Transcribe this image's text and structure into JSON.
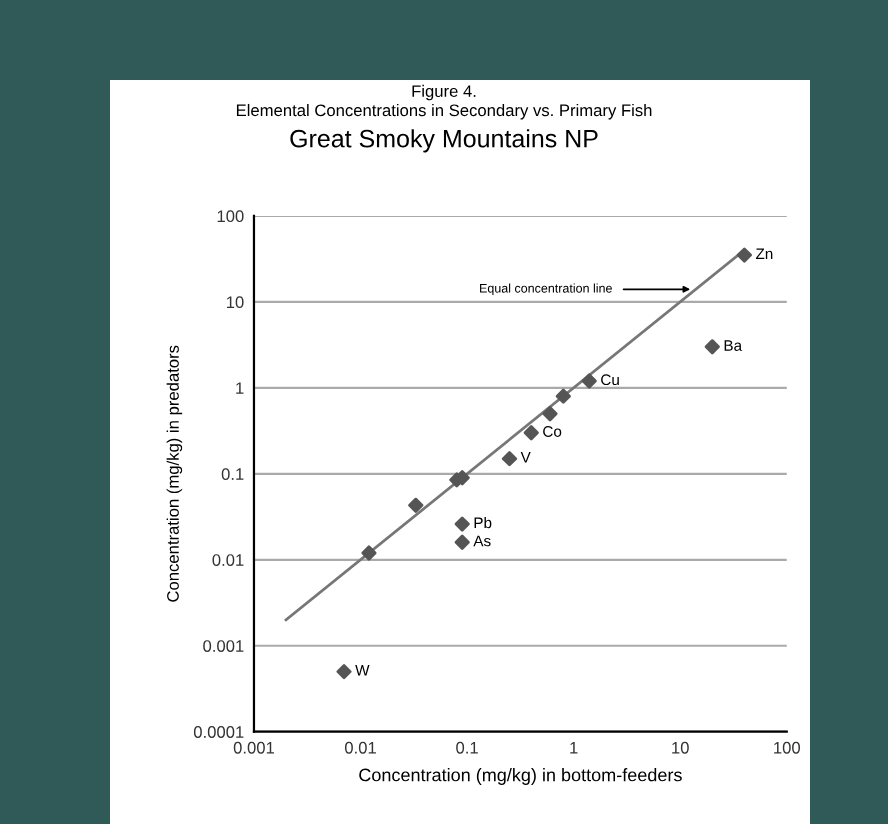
{
  "chart_data": {
    "type": "scatter",
    "title": "Figure 4.\nElemental Concentrations in Secondary vs. Primary Fish",
    "subtitle": "Great Smoky Mountains NP",
    "xlabel": "Concentration (mg/kg) in bottom-feeders",
    "ylabel": "Concentration (mg/kg) in predators",
    "log": "xy",
    "grid": "y",
    "xlim": [
      0.001,
      100
    ],
    "ylim": [
      0.0001,
      100
    ],
    "xticks": [
      0.001,
      0.01,
      0.1,
      1,
      10,
      100
    ],
    "yticks": [
      0.0001,
      0.001,
      0.01,
      0.1,
      1,
      10,
      100
    ],
    "series": [
      {
        "marker": "diamond",
        "color": "#555555",
        "x": [
          40,
          20,
          1.4,
          0.8,
          0.6,
          0.4,
          0.25,
          0.09,
          0.08,
          0.033,
          0.09,
          0.09,
          0.012,
          0.007
        ],
        "values": [
          35,
          3,
          1.2,
          0.8,
          0.5,
          0.3,
          0.15,
          0.09,
          0.085,
          0.043,
          0.026,
          0.016,
          0.012,
          0.0005
        ]
      },
      {
        "type": "line",
        "color": "#777777",
        "x": [
          0.002,
          40
        ],
        "values": [
          0.002,
          40
        ]
      }
    ],
    "annotations": [
      {
        "text": "Zn",
        "x": 40,
        "y": 35
      },
      {
        "text": "Ba",
        "x": 20,
        "y": 3
      },
      {
        "text": "Cu",
        "x": 1.4,
        "y": 1.2
      },
      {
        "text": "Co",
        "x": 0.4,
        "y": 0.3
      },
      {
        "text": "V",
        "x": 0.25,
        "y": 0.15
      },
      {
        "text": "Pb",
        "x": 0.09,
        "y": 0.026
      },
      {
        "text": "As",
        "x": 0.09,
        "y": 0.016
      },
      {
        "text": "W",
        "x": 0.007,
        "y": 0.0005
      },
      {
        "text": "Equal concentration line",
        "x": 14,
        "y": 14
      }
    ]
  }
}
